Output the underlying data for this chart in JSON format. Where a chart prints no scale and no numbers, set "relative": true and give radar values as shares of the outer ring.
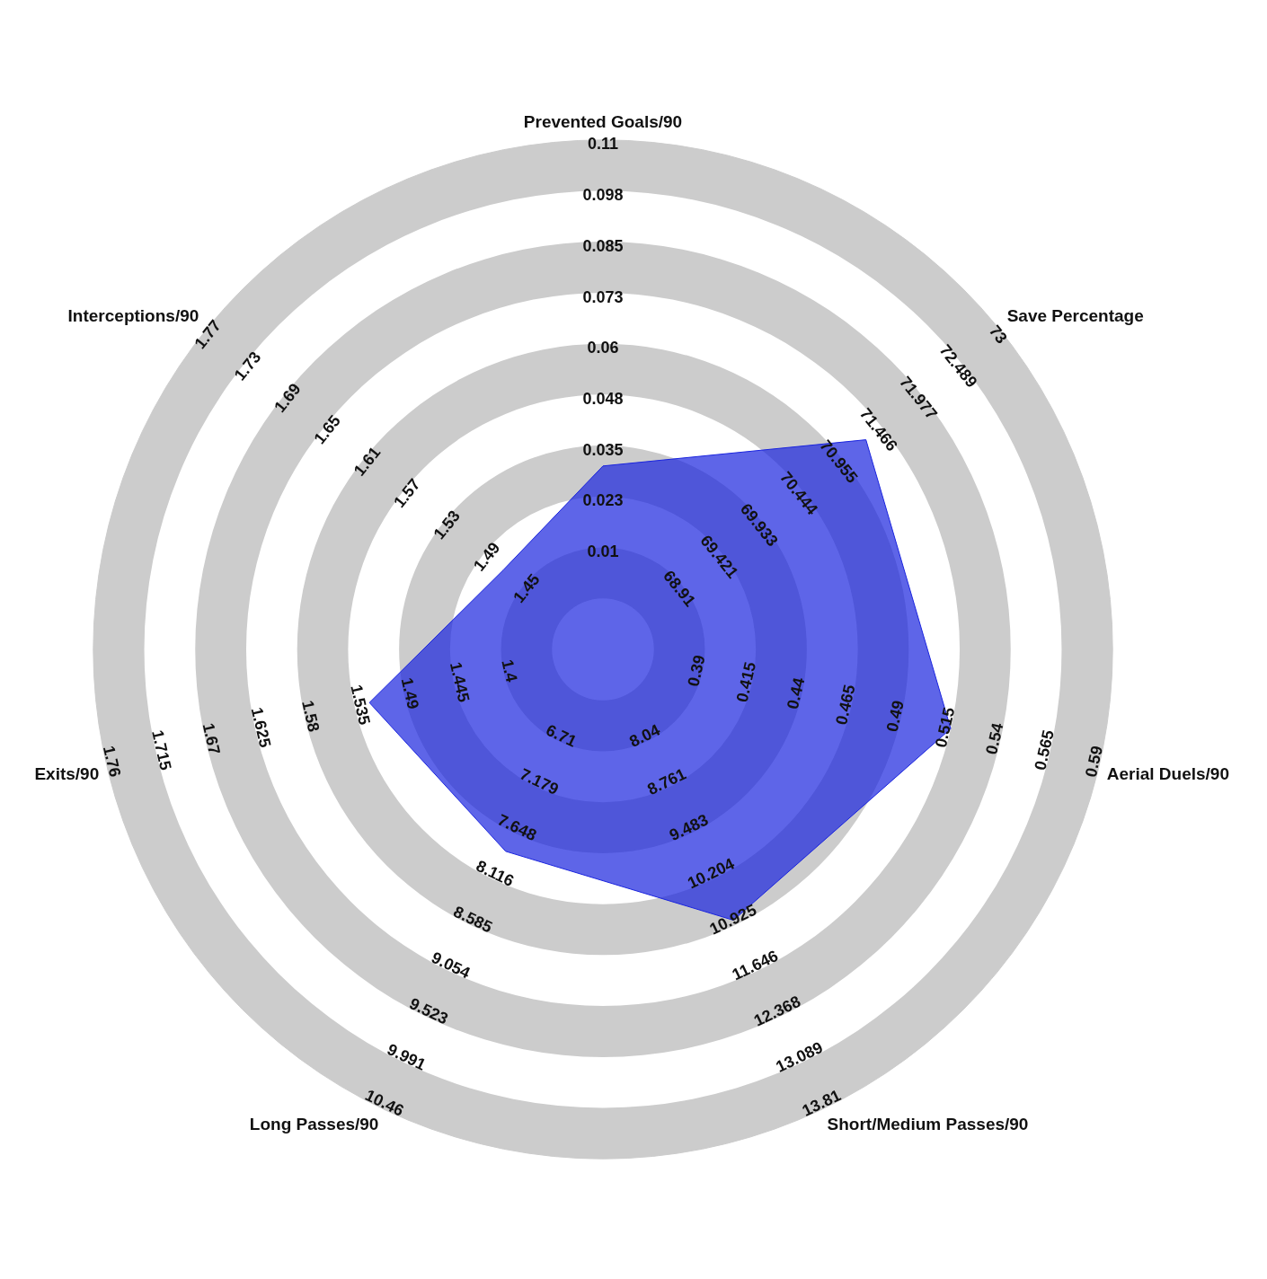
{
  "chart_data": {
    "type": "radar",
    "relative": true,
    "grid": true,
    "legend": false,
    "categories": [
      "Prevented Goals/90",
      "Save Percentage",
      "Aerial Duels/90",
      "Short/Medium Passes/90",
      "Long Passes/90",
      "Exits/90",
      "Interceptions/90"
    ],
    "series": [
      {
        "color": "#1a24de",
        "values": [
          0.36,
          0.66,
          0.7,
          0.59,
          0.44,
          0.47,
          0.25
        ]
      }
    ],
    "annotations": [
      {
        "text": "0.01",
        "x": "Prevented Goals/90"
      },
      {
        "text": "0.023",
        "x": "Prevented Goals/90"
      },
      {
        "text": "0.035",
        "x": "Prevented Goals/90"
      },
      {
        "text": "0.048",
        "x": "Prevented Goals/90"
      },
      {
        "text": "0.06",
        "x": "Prevented Goals/90"
      },
      {
        "text": "0.073",
        "x": "Prevented Goals/90"
      },
      {
        "text": "0.085",
        "x": "Prevented Goals/90"
      },
      {
        "text": "0.098",
        "x": "Prevented Goals/90"
      },
      {
        "text": "0.11",
        "x": "Prevented Goals/90"
      },
      {
        "text": "68.91",
        "x": "Save Percentage"
      },
      {
        "text": "69.421",
        "x": "Save Percentage"
      },
      {
        "text": "69.933",
        "x": "Save Percentage"
      },
      {
        "text": "70.444",
        "x": "Save Percentage"
      },
      {
        "text": "70.955",
        "x": "Save Percentage"
      },
      {
        "text": "71.466",
        "x": "Save Percentage"
      },
      {
        "text": "71.977",
        "x": "Save Percentage"
      },
      {
        "text": "72.489",
        "x": "Save Percentage"
      },
      {
        "text": "73",
        "x": "Save Percentage"
      },
      {
        "text": "0.39",
        "x": "Aerial Duels/90"
      },
      {
        "text": "0.415",
        "x": "Aerial Duels/90"
      },
      {
        "text": "0.44",
        "x": "Aerial Duels/90"
      },
      {
        "text": "0.465",
        "x": "Aerial Duels/90"
      },
      {
        "text": "0.49",
        "x": "Aerial Duels/90"
      },
      {
        "text": "0.515",
        "x": "Aerial Duels/90"
      },
      {
        "text": "0.54",
        "x": "Aerial Duels/90"
      },
      {
        "text": "0.565",
        "x": "Aerial Duels/90"
      },
      {
        "text": "0.59",
        "x": "Aerial Duels/90"
      },
      {
        "text": "8.04",
        "x": "Short/Medium Passes/90"
      },
      {
        "text": "8.761",
        "x": "Short/Medium Passes/90"
      },
      {
        "text": "9.483",
        "x": "Short/Medium Passes/90"
      },
      {
        "text": "10.204",
        "x": "Short/Medium Passes/90"
      },
      {
        "text": "10.925",
        "x": "Short/Medium Passes/90"
      },
      {
        "text": "11.646",
        "x": "Short/Medium Passes/90"
      },
      {
        "text": "12.368",
        "x": "Short/Medium Passes/90"
      },
      {
        "text": "13.089",
        "x": "Short/Medium Passes/90"
      },
      {
        "text": "13.81",
        "x": "Short/Medium Passes/90"
      },
      {
        "text": "6.71",
        "x": "Long Passes/90"
      },
      {
        "text": "7.179",
        "x": "Long Passes/90"
      },
      {
        "text": "7.648",
        "x": "Long Passes/90"
      },
      {
        "text": "8.116",
        "x": "Long Passes/90"
      },
      {
        "text": "8.585",
        "x": "Long Passes/90"
      },
      {
        "text": "9.054",
        "x": "Long Passes/90"
      },
      {
        "text": "9.523",
        "x": "Long Passes/90"
      },
      {
        "text": "9.991",
        "x": "Long Passes/90"
      },
      {
        "text": "10.46",
        "x": "Long Passes/90"
      },
      {
        "text": "1.4",
        "x": "Exits/90"
      },
      {
        "text": "1.445",
        "x": "Exits/90"
      },
      {
        "text": "1.49",
        "x": "Exits/90"
      },
      {
        "text": "1.535",
        "x": "Exits/90"
      },
      {
        "text": "1.58",
        "x": "Exits/90"
      },
      {
        "text": "1.625",
        "x": "Exits/90"
      },
      {
        "text": "1.67",
        "x": "Exits/90"
      },
      {
        "text": "1.715",
        "x": "Exits/90"
      },
      {
        "text": "1.76",
        "x": "Exits/90"
      },
      {
        "text": "1.45",
        "x": "Interceptions/90"
      },
      {
        "text": "1.49",
        "x": "Interceptions/90"
      },
      {
        "text": "1.53",
        "x": "Interceptions/90"
      },
      {
        "text": "1.57",
        "x": "Interceptions/90"
      },
      {
        "text": "1.61",
        "x": "Interceptions/90"
      },
      {
        "text": "1.65",
        "x": "Interceptions/90"
      },
      {
        "text": "1.69",
        "x": "Interceptions/90"
      },
      {
        "text": "1.73",
        "x": "Interceptions/90"
      },
      {
        "text": "1.77",
        "x": "Interceptions/90"
      }
    ]
  }
}
